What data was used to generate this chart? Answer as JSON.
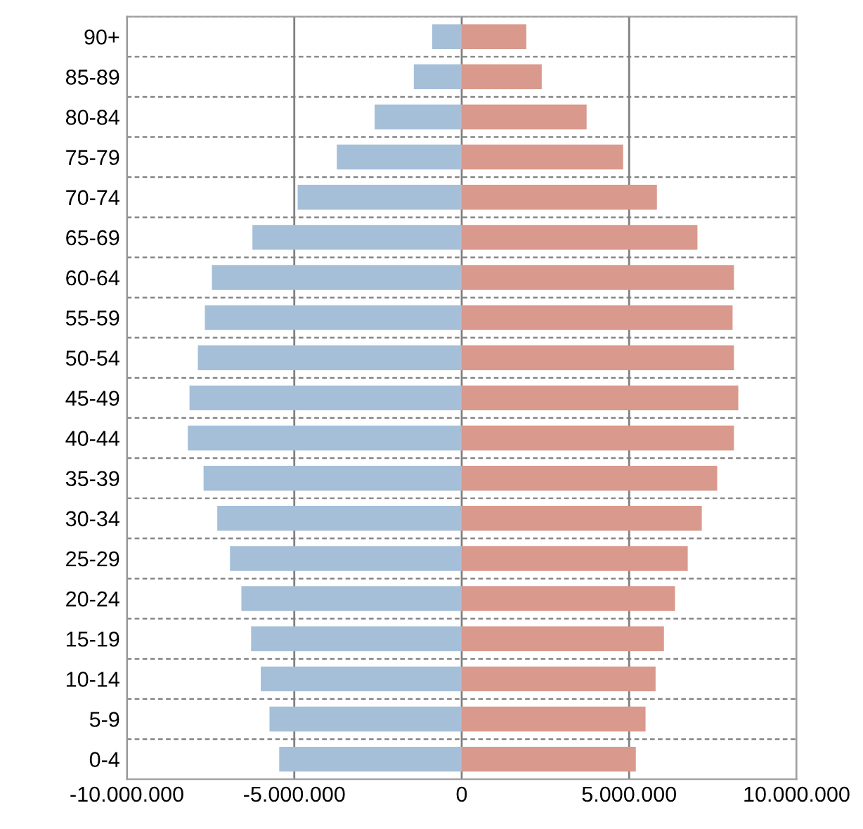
{
  "chart_data": {
    "type": "bar",
    "orientation": "horizontal",
    "categories": [
      "90+",
      "85-89",
      "80-84",
      "75-79",
      "70-74",
      "65-69",
      "60-64",
      "55-59",
      "50-54",
      "45-49",
      "40-44",
      "35-39",
      "30-34",
      "25-29",
      "20-24",
      "15-19",
      "10-14",
      "5-9",
      "0-4"
    ],
    "series": [
      {
        "color": "#a5bfd8",
        "values": [
          -880000,
          -1430000,
          -2600000,
          -3730000,
          -4900000,
          -6250000,
          -7460000,
          -7670000,
          -7880000,
          -8130000,
          -8180000,
          -7710000,
          -7300000,
          -6920000,
          -6580000,
          -6290000,
          -6000000,
          -5740000,
          -5450000
        ]
      },
      {
        "color": "#d9998c",
        "values": [
          1930000,
          2390000,
          3730000,
          4820000,
          5830000,
          7040000,
          8130000,
          8090000,
          8130000,
          8260000,
          8130000,
          7630000,
          7170000,
          6750000,
          6370000,
          6040000,
          5790000,
          5490000,
          5200000
        ]
      }
    ],
    "xlim": [
      -10000000,
      10000000
    ],
    "xticks": [
      {
        "value": -10000000,
        "label": "-10.000.000"
      },
      {
        "value": -5000000,
        "label": "-5.000.000"
      },
      0,
      {
        "value": 5000000,
        "label": "5.000.000"
      },
      {
        "value": 10000000,
        "label": "10.000.000"
      }
    ],
    "stacked": true,
    "grid": true,
    "legend": false
  }
}
